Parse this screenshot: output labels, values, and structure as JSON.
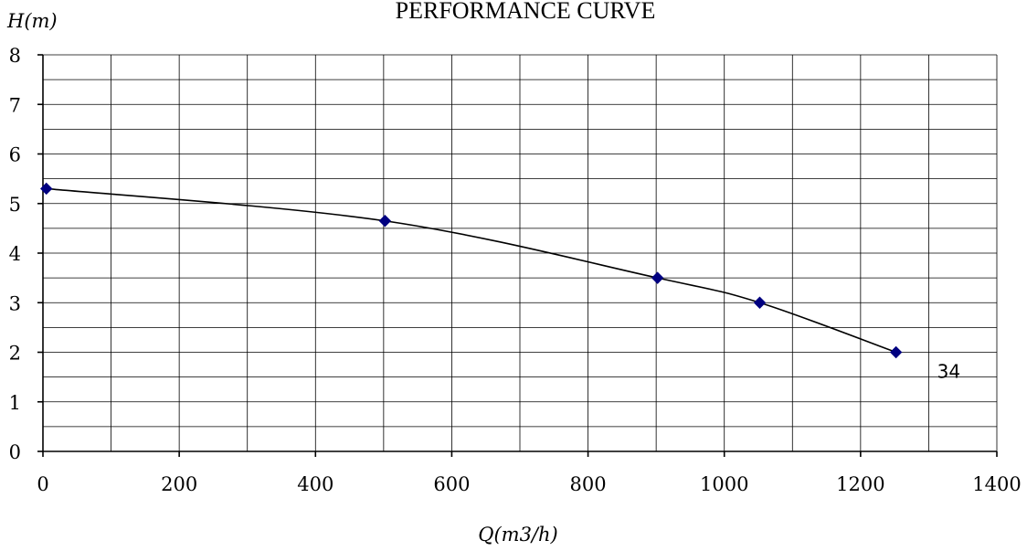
{
  "chart_data": {
    "type": "line",
    "title": "PERFORMANCE CURVE",
    "xlabel": "Q(m3/h)",
    "ylabel": "H(m)",
    "xlim": [
      0,
      1400
    ],
    "ylim": [
      0,
      8
    ],
    "x_ticks": [
      0,
      200,
      400,
      600,
      800,
      1000,
      1200,
      1400
    ],
    "y_ticks": [
      0,
      1,
      2,
      3,
      4,
      5,
      6,
      7,
      8
    ],
    "grid": true,
    "legend": "none",
    "series": [
      {
        "label": "34",
        "marker": "diamond",
        "marker_color": "#000080",
        "line_color": "#000000",
        "smooth": true,
        "x": [
          5,
          502,
          902,
          1052,
          1252
        ],
        "y": [
          5.3,
          4.65,
          3.5,
          3.0,
          2.0
        ]
      }
    ]
  }
}
